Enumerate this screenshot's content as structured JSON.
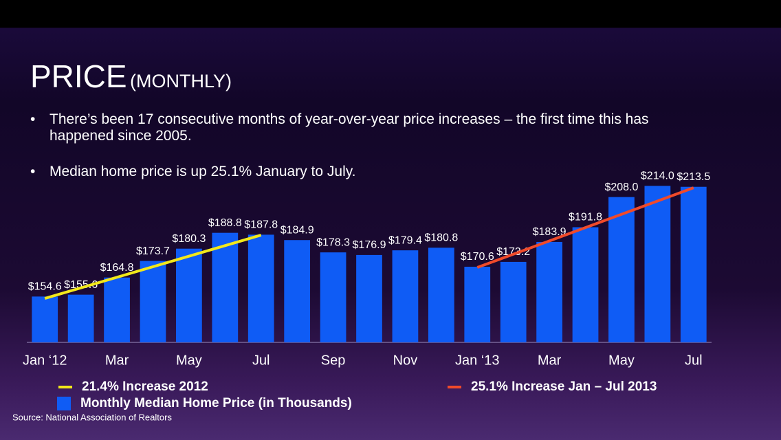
{
  "header": {
    "title": "PRICE",
    "subtitle": "(MONTHLY)"
  },
  "bullets": [
    "There’s been 17 consecutive months of year-over-year price increases – the first time this has happened since 2005.",
    "Median home price is up 25.1% January to July."
  ],
  "chart_data": {
    "type": "bar",
    "categories": [
      "Jan ‘12",
      null,
      "Mar",
      null,
      "May",
      null,
      "Jul",
      null,
      "Sep",
      null,
      "Nov",
      null,
      "Jan ‘13",
      null,
      "Mar",
      null,
      "May",
      null,
      "Jul"
    ],
    "series": [
      {
        "name": "Monthly Median Home Price (in Thousands)",
        "color": "#0f5cf5",
        "values": [
          154.6,
          155.6,
          164.8,
          173.7,
          180.3,
          188.8,
          187.8,
          184.9,
          178.3,
          176.9,
          179.4,
          180.8,
          170.6,
          173.2,
          183.9,
          191.8,
          208.0,
          214.0,
          213.5
        ],
        "value_labels": [
          "$154.6",
          "$155.6",
          "$164.8",
          "$173.7",
          "$180.3",
          "$188.8",
          "$187.8",
          "$184.9",
          "$178.3",
          "$176.9",
          "$179.4",
          "$180.8",
          "$170.6",
          "$173.2",
          "$183.9",
          "$191.8",
          "$208.0",
          "$214.0",
          "$213.5"
        ]
      }
    ],
    "trend_lines": [
      {
        "name": "21.4% Increase 2012",
        "color": "#f2e81a",
        "x": [
          0,
          6
        ],
        "values": [
          153.6,
          187.6
        ]
      },
      {
        "name": "25.1% Increase Jan – Jul 2013",
        "color": "#f04a2a",
        "x": [
          12,
          18
        ],
        "values": [
          170.2,
          213.0
        ]
      }
    ],
    "ylim": [
      130,
      230
    ]
  },
  "source": "Source: National Association of Realtors"
}
